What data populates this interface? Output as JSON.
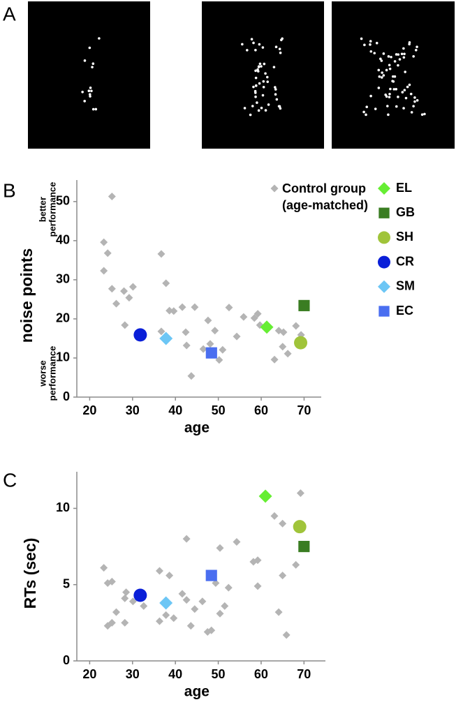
{
  "figure": {
    "panel_label": "A"
  },
  "chart_data": [
    {
      "type": "scatter",
      "panel_label": "B",
      "x_label": "age",
      "y_label": "noise points",
      "annotations": [
        [
          "better",
          "performance"
        ],
        [
          "worse",
          "performance"
        ]
      ],
      "xlim": [
        17,
        74
      ],
      "ylim": [
        0,
        55.5
      ],
      "xticks": [
        20,
        30,
        40,
        50,
        60,
        70
      ],
      "yticks": [
        0,
        10,
        20,
        30,
        40,
        50
      ],
      "legend": true,
      "series": [
        {
          "name": "Control group (age-matched)",
          "color": "#b4b4b4",
          "marker": "diamond",
          "x": [
            25.2,
            23.3,
            24.2,
            23.3,
            25.2,
            26.2,
            28.2,
            28.0,
            29.2,
            30.1,
            36.7,
            37.8,
            38.6,
            39.6,
            41.6,
            44.5,
            42.4,
            42.6,
            43.7,
            36.7,
            47.6,
            49.2,
            48.1,
            46.5,
            50.2,
            51.0,
            52.5,
            54.3,
            55.9,
            58.4,
            59.2,
            59.7,
            63.1,
            64.1,
            65.2,
            65.0,
            66.2,
            68.1,
            69.3
          ],
          "values": [
            51.3,
            39.6,
            36.8,
            32.3,
            27.7,
            23.9,
            18.4,
            27.1,
            25.4,
            28.2,
            36.6,
            29.1,
            22.1,
            22.0,
            23.0,
            23.0,
            16.6,
            13.2,
            5.4,
            16.8,
            19.6,
            17.0,
            13.6,
            12.3,
            9.5,
            12.1,
            22.9,
            15.5,
            20.5,
            20.2,
            21.3,
            18.4,
            9.6,
            17.0,
            16.6,
            12.9,
            11.1,
            18.2,
            15.9
          ]
        },
        {
          "name": "EL",
          "color": "#66ee33",
          "marker": "diamond",
          "x": [
            61.3
          ],
          "values": [
            17.9
          ]
        },
        {
          "name": "GB",
          "color": "#3a7d22",
          "marker": "square",
          "x": [
            70.0
          ],
          "values": [
            23.4
          ]
        },
        {
          "name": "SH",
          "color": "#a0c43a",
          "marker": "circle",
          "x": [
            69.2
          ],
          "values": [
            13.9
          ]
        },
        {
          "name": "CR",
          "color": "#0a1fd8",
          "marker": "circle",
          "x": [
            31.8
          ],
          "values": [
            15.9
          ]
        },
        {
          "name": "SM",
          "color": "#6cc6f5",
          "marker": "diamond",
          "x": [
            37.8
          ],
          "values": [
            15.0
          ]
        },
        {
          "name": "EC",
          "color": "#4a6ef0",
          "marker": "square",
          "x": [
            48.4
          ],
          "values": [
            11.3
          ]
        }
      ]
    },
    {
      "type": "scatter",
      "panel_label": "C",
      "x_label": "age",
      "y_label": "RTs (sec)",
      "xlim": [
        17,
        75
      ],
      "ylim": [
        0,
        12.4
      ],
      "xticks": [
        20,
        30,
        40,
        50,
        60,
        70
      ],
      "yticks": [
        0,
        5,
        10
      ],
      "legend": false,
      "series": [
        {
          "color": "#b4b4b4",
          "marker": "diamond",
          "x": [
            23.3,
            24.2,
            25.2,
            24.2,
            25.2,
            26.2,
            28.2,
            28.5,
            28.2,
            30.1,
            32.6,
            36.3,
            38.6,
            36.3,
            37.8,
            39.6,
            41.6,
            42.6,
            42.6,
            43.6,
            44.5,
            46.3,
            47.5,
            48.4,
            49.4,
            50.4,
            50.4,
            51.5,
            52.4,
            54.3,
            58.2,
            59.2,
            59.2,
            63.1,
            64.1,
            65.0,
            65.0,
            65.9,
            68.1,
            69.2
          ],
          "values": [
            6.1,
            5.1,
            5.2,
            2.3,
            2.5,
            3.2,
            4.1,
            4.5,
            2.5,
            3.9,
            3.6,
            5.9,
            5.6,
            2.6,
            3.0,
            2.8,
            4.4,
            8.0,
            4.0,
            2.3,
            3.4,
            3.9,
            1.9,
            2.0,
            5.1,
            7.4,
            3.1,
            3.6,
            4.8,
            7.8,
            6.5,
            6.6,
            4.9,
            9.5,
            3.2,
            9.0,
            5.6,
            1.7,
            6.3,
            11.0
          ]
        },
        {
          "color": "#66ee33",
          "marker": "diamond",
          "x": [
            61.0
          ],
          "values": [
            10.8
          ]
        },
        {
          "color": "#3a7d22",
          "marker": "square",
          "x": [
            70.0
          ],
          "values": [
            7.5
          ]
        },
        {
          "color": "#a0c43a",
          "marker": "circle",
          "x": [
            69.0
          ],
          "values": [
            8.8
          ]
        },
        {
          "color": "#0a1fd8",
          "marker": "circle",
          "x": [
            31.8
          ],
          "values": [
            4.3
          ]
        },
        {
          "color": "#6cc6f5",
          "marker": "diamond",
          "x": [
            37.8
          ],
          "values": [
            3.8
          ]
        },
        {
          "color": "#4a6ef0",
          "marker": "square",
          "x": [
            48.4
          ],
          "values": [
            5.6
          ]
        }
      ]
    }
  ]
}
